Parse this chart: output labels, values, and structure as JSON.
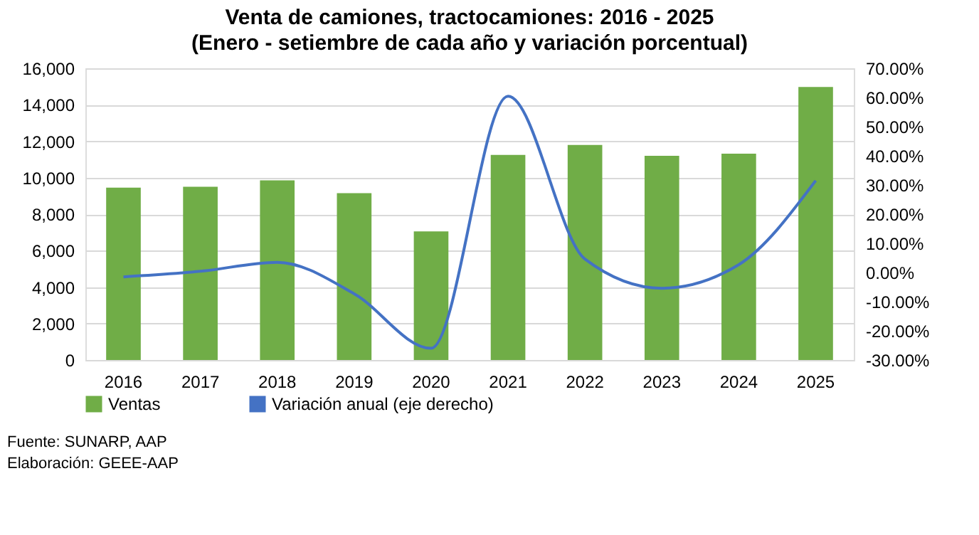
{
  "chart_data": {
    "type": "bar",
    "title": "Venta de camiones, tractocamiones: 2016 - 2025",
    "subtitle": "(Enero - setiembre de cada año y variación porcentual)",
    "categories": [
      "2016",
      "2017",
      "2018",
      "2019",
      "2020",
      "2021",
      "2022",
      "2023",
      "2024",
      "2025"
    ],
    "series": [
      {
        "name": "Ventas",
        "color": "#70ad47",
        "values": [
          9450,
          9500,
          9850,
          9150,
          7050,
          11250,
          11800,
          11200,
          11320,
          14980
        ]
      },
      {
        "name": "Variación anual (eje derecho)",
        "type": "line",
        "axis": "y2",
        "color": "#4472c4",
        "values": [
          -1.5,
          0.4,
          3.5,
          -7.3,
          -26,
          60.4,
          4.6,
          -5.4,
          2.7,
          31.5
        ]
      }
    ],
    "ylim": [
      0,
      16000
    ],
    "yticks": [
      {
        "value": 0,
        "label": "0"
      },
      {
        "value": 2000,
        "label": "2,000"
      },
      {
        "value": 4000,
        "label": "4,000"
      },
      {
        "value": 6000,
        "label": "6,000"
      },
      {
        "value": 8000,
        "label": "8,000"
      },
      {
        "value": 10000,
        "label": "10,000"
      },
      {
        "value": 12000,
        "label": "12,000"
      },
      {
        "value": 14000,
        "label": "14,000"
      },
      {
        "value": 16000,
        "label": "16,000"
      }
    ],
    "y2lim": [
      -30,
      70
    ],
    "y2ticks": [
      {
        "value": -30,
        "label": "-30.00%"
      },
      {
        "value": -20,
        "label": "-20.00%"
      },
      {
        "value": -10,
        "label": "-10.00%"
      },
      {
        "value": 0,
        "label": "0.00%"
      },
      {
        "value": 10,
        "label": "10.00%"
      },
      {
        "value": 20,
        "label": "20.00%"
      },
      {
        "value": 30,
        "label": "30.00%"
      },
      {
        "value": 40,
        "label": "40.00%"
      },
      {
        "value": 50,
        "label": "50.00%"
      },
      {
        "value": 60,
        "label": "60.00%"
      },
      {
        "value": 70,
        "label": "70.00%"
      }
    ],
    "grid": "y",
    "legend": "bottom",
    "marker": "none",
    "line_style": "solid",
    "annotations": [
      "Fuente: SUNARP, AAP",
      "Elaboración: GEEE-AAP"
    ]
  }
}
